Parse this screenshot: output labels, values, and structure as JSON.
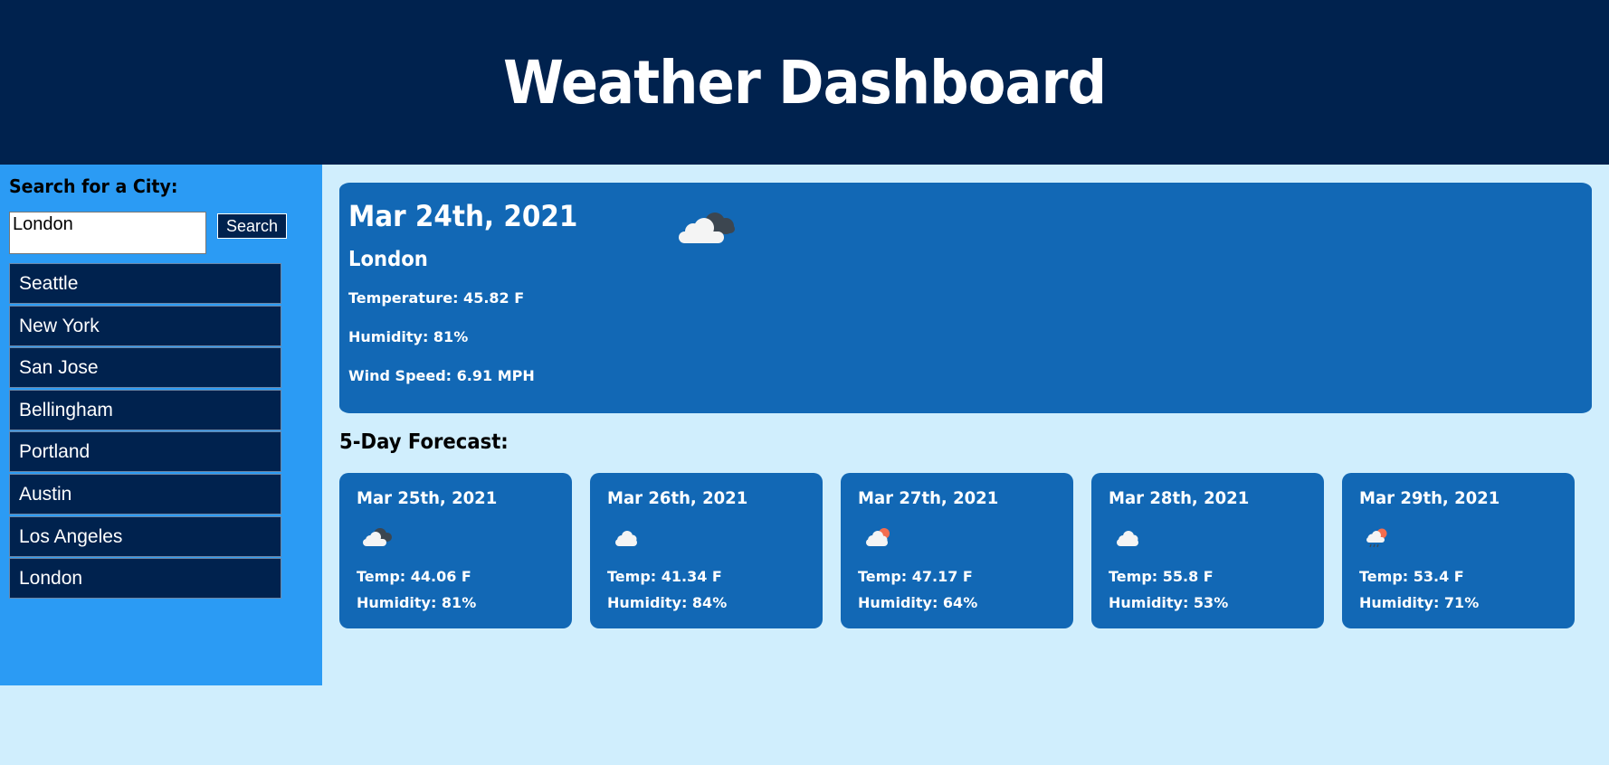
{
  "header": {
    "title": "Weather Dashboard"
  },
  "sidebar": {
    "search_label": "Search for a City:",
    "search_value": "London",
    "search_button": "Search",
    "cities": [
      "Seattle",
      "New York",
      "San Jose",
      "Bellingham",
      "Portland",
      "Austin",
      "Los Angeles",
      "London"
    ]
  },
  "current": {
    "date": "Mar 24th, 2021",
    "icon": "broken-clouds-icon",
    "city": "London",
    "temperature": "Temperature: 45.82 F",
    "humidity": "Humidity: 81%",
    "wind": "Wind Speed: 6.91 MPH"
  },
  "forecast": {
    "heading": "5-Day Forecast:",
    "days": [
      {
        "date": "Mar 25th, 2021",
        "icon": "broken-clouds-icon",
        "temp": "Temp: 44.06 F",
        "humidity": "Humidity: 81%"
      },
      {
        "date": "Mar 26th, 2021",
        "icon": "cloud-icon",
        "temp": "Temp: 41.34 F",
        "humidity": "Humidity: 84%"
      },
      {
        "date": "Mar 27th, 2021",
        "icon": "partly-cloudy-icon",
        "temp": "Temp: 47.17 F",
        "humidity": "Humidity: 64%"
      },
      {
        "date": "Mar 28th, 2021",
        "icon": "cloud-icon",
        "temp": "Temp: 55.8 F",
        "humidity": "Humidity: 53%"
      },
      {
        "date": "Mar 29th, 2021",
        "icon": "sun-rain-icon",
        "temp": "Temp: 53.4 F",
        "humidity": "Humidity: 71%"
      }
    ]
  },
  "colors": {
    "header_bg": "#00224e",
    "sidebar_bg": "#2b9bf4",
    "page_bg": "#d0eefd",
    "card_bg": "#1268b5",
    "sun": "#f46d4e"
  }
}
